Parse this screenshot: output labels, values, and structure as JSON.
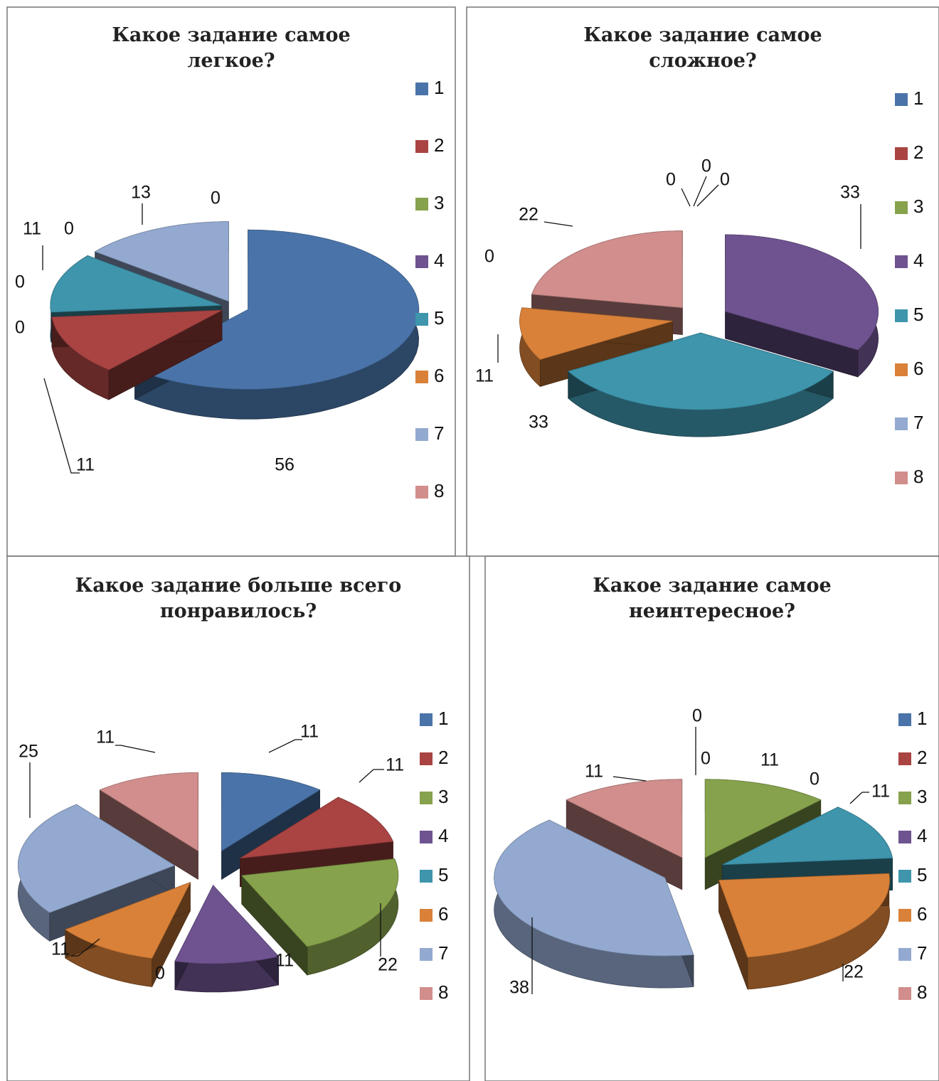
{
  "colors": [
    "#4A74A9",
    "#A94442",
    "#86A24C",
    "#6E5390",
    "#3E95AC",
    "#D98139",
    "#93A9D0",
    "#D18E8C"
  ],
  "chart_data": [
    {
      "type": "pie",
      "title_lines": [
        "Какое задание самое",
        "легкое?"
      ],
      "categories": [
        "1",
        "2",
        "3",
        "4",
        "5",
        "6",
        "7",
        "8"
      ],
      "values": [
        56,
        11,
        0,
        0,
        11,
        0,
        13,
        0
      ],
      "labels": [
        "56",
        "11",
        "0",
        "0",
        "11",
        "0",
        "13",
        "0"
      ],
      "legend": [
        "1",
        "2",
        "3",
        "4",
        "5",
        "6",
        "7",
        "8"
      ],
      "legend_position": "right"
    },
    {
      "type": "pie",
      "title_lines": [
        "Какое задание самое",
        "сложное?"
      ],
      "categories": [
        "1",
        "2",
        "3",
        "4",
        "5",
        "6",
        "7",
        "8"
      ],
      "values": [
        0,
        0,
        0,
        33,
        33,
        11,
        0,
        22
      ],
      "labels": [
        "0",
        "0",
        "0",
        "33",
        "33",
        "11",
        "0",
        "22"
      ],
      "legend": [
        "1",
        "2",
        "3",
        "4",
        "5",
        "6",
        "7",
        "8"
      ],
      "legend_position": "right"
    },
    {
      "type": "pie",
      "title_lines": [
        "Какое задание больше всего",
        "понравилось?"
      ],
      "categories": [
        "1",
        "2",
        "3",
        "4",
        "5",
        "6",
        "7",
        "8"
      ],
      "values": [
        11,
        11,
        22,
        11,
        0,
        11,
        25,
        11
      ],
      "labels": [
        "11",
        "11",
        "22",
        "11",
        "0",
        "11",
        "25",
        "11"
      ],
      "legend": [
        "1",
        "2",
        "3",
        "4",
        "5",
        "6",
        "7",
        "8"
      ],
      "legend_position": "right"
    },
    {
      "type": "pie",
      "title_lines": [
        "Какое задание самое",
        "неинтересное?"
      ],
      "categories": [
        "1",
        "2",
        "3",
        "4",
        "5",
        "6",
        "7",
        "8"
      ],
      "values": [
        0,
        0,
        11,
        0,
        11,
        22,
        38,
        11
      ],
      "labels": [
        "0",
        "0",
        "11",
        "0",
        "11",
        "22",
        "38",
        "11"
      ],
      "legend": [
        "1",
        "2",
        "3",
        "4",
        "5",
        "6",
        "7",
        "8"
      ],
      "legend_position": "right"
    }
  ]
}
